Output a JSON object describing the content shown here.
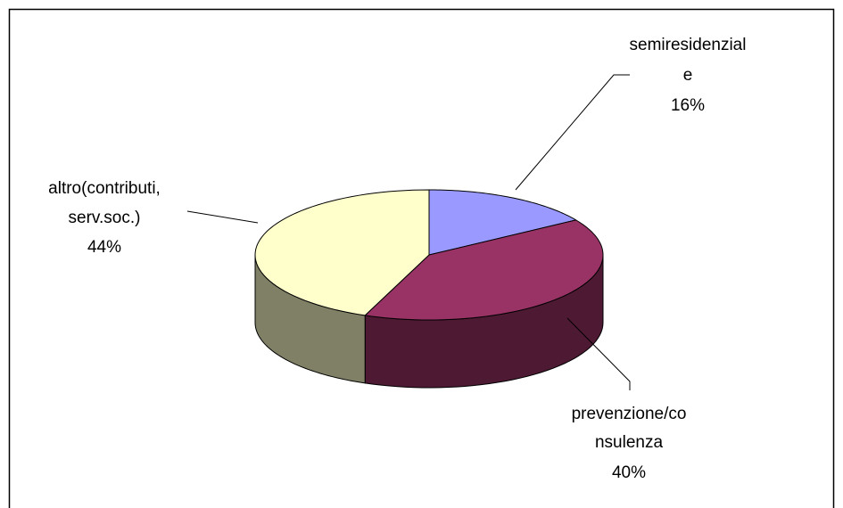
{
  "chart_data": {
    "type": "pie",
    "title": "",
    "style": "3d",
    "legend": "none",
    "slices": [
      {
        "label_lines": [
          "semiresidenzial",
          "e"
        ],
        "percent_label": "16%",
        "value": 16,
        "color": "#9999ff",
        "side_color": "#5c5c99"
      },
      {
        "label_lines": [
          "prevenzione/co",
          "nsulenza"
        ],
        "percent_label": "40%",
        "value": 40,
        "color": "#993366",
        "side_color": "#4d1933"
      },
      {
        "label_lines": [
          "altro(contributi,",
          "serv.soc.)"
        ],
        "percent_label": "44%",
        "value": 44,
        "color": "#ffffcc",
        "side_color": "#808066"
      }
    ]
  }
}
